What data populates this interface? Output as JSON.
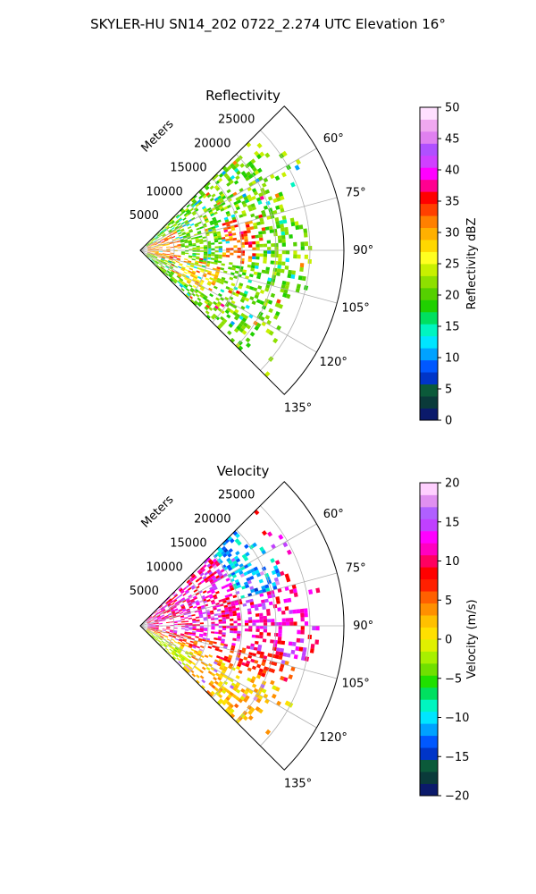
{
  "figure": {
    "suptitle": "SKYLER-HU  SN14_202  0722_2.274 UTC Elevation 16°"
  },
  "chart_data": [
    {
      "type": "polar-sector",
      "title": "Reflectivity",
      "radial_label": "Meters",
      "radial_ticks": [
        5000,
        10000,
        15000,
        20000,
        25000
      ],
      "radial_tick_labels": [
        "5000",
        "10000",
        "15000",
        "20000",
        "25000"
      ],
      "rlim": [
        0,
        30000
      ],
      "azimuth_range_deg": [
        45,
        135
      ],
      "azimuth_ticks_deg": [
        60,
        75,
        90,
        105,
        120,
        135
      ],
      "azimuth_tick_labels": [
        "60°",
        "75°",
        "90°",
        "105°",
        "120°",
        "135°"
      ],
      "grid": true,
      "colorbar": {
        "label": "Reflectivity dBZ",
        "range": [
          0,
          50
        ],
        "ticks": [
          0,
          5,
          10,
          15,
          20,
          25,
          30,
          35,
          40,
          45,
          50
        ],
        "tick_labels": [
          "0",
          "5",
          "10",
          "15",
          "20",
          "25",
          "30",
          "35",
          "40",
          "45",
          "50"
        ],
        "colors": [
          "#0b1a6b",
          "#0a3a3a",
          "#0b5a3a",
          "#0035c8",
          "#0058ff",
          "#00a2ff",
          "#00e5ff",
          "#00f5c0",
          "#00e060",
          "#20d000",
          "#55d000",
          "#8ee000",
          "#c8f000",
          "#ffff20",
          "#ffd800",
          "#ffb000",
          "#ff8000",
          "#ff4000",
          "#ff0000",
          "#ff0090",
          "#ff00ff",
          "#d040ff",
          "#b050ff",
          "#e080f0",
          "#f0a8f0",
          "#ffe0ff"
        ]
      },
      "field_summary": "Mostly 15-25 dBZ echoes spread across the sector, with bands of 30-38 dBZ near the radar and around 15000 m at 75-95°"
    },
    {
      "type": "polar-sector",
      "title": "Velocity",
      "radial_label": "Meters",
      "radial_ticks": [
        5000,
        10000,
        15000,
        20000,
        25000
      ],
      "radial_tick_labels": [
        "5000",
        "10000",
        "15000",
        "20000",
        "25000"
      ],
      "rlim": [
        0,
        30000
      ],
      "azimuth_range_deg": [
        45,
        135
      ],
      "azimuth_ticks_deg": [
        60,
        75,
        90,
        105,
        120,
        135
      ],
      "azimuth_tick_labels": [
        "60°",
        "75°",
        "90°",
        "105°",
        "120°",
        "135°"
      ],
      "grid": true,
      "colorbar": {
        "label": "Velocity (m/s)",
        "range": [
          -20,
          20
        ],
        "ticks": [
          -20,
          -15,
          -10,
          -5,
          0,
          5,
          10,
          15,
          20
        ],
        "tick_labels": [
          "−20",
          "−15",
          "−10",
          "−5",
          "0",
          "5",
          "10",
          "15",
          "20"
        ],
        "colors": [
          "#0b1a6b",
          "#0a3a3a",
          "#0b5a3a",
          "#0035c8",
          "#0058ff",
          "#00a2ff",
          "#00e5ff",
          "#00f5c0",
          "#00e060",
          "#20e000",
          "#70e000",
          "#a8f000",
          "#e0f000",
          "#ffe000",
          "#ffc000",
          "#ff9000",
          "#ff6000",
          "#ff2000",
          "#ff0000",
          "#ff0060",
          "#ff00c0",
          "#ff00ff",
          "#c040ff",
          "#b060ff",
          "#e090f0",
          "#ffd0ff"
        ]
      },
      "field_summary": "Mostly 8-15 m/s (magenta/red) near 60-100°, -15 to -10 m/s (blue) near 65-72° at 15000-22000 m, and 0-5 m/s (yellow/orange) toward 105-135°"
    }
  ]
}
